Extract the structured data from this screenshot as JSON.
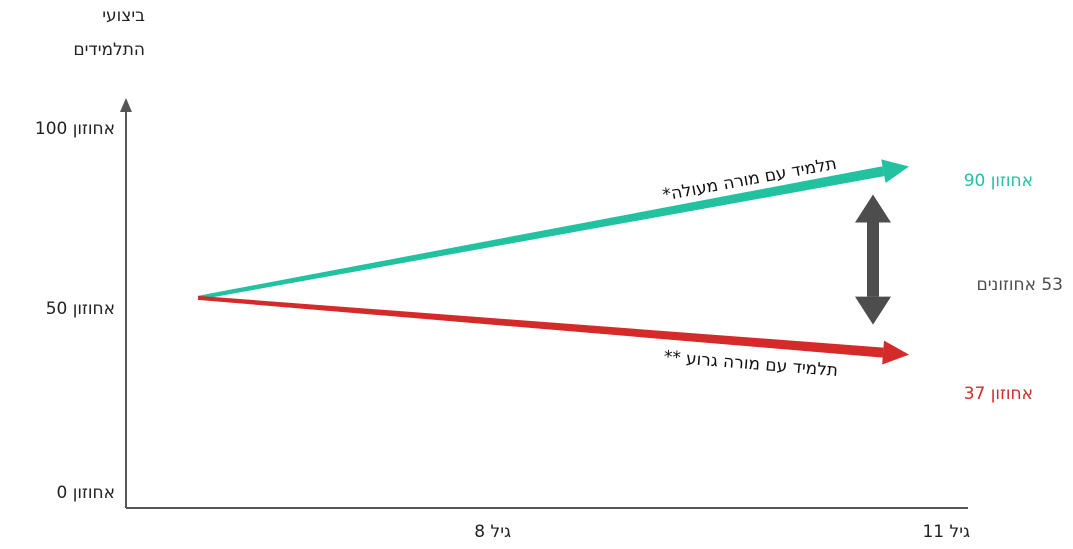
{
  "chart_data": {
    "type": "line",
    "ylabel": "ביצועי התלמידים",
    "ylabel_lines": [
      "ביצועי",
      "התלמידים"
    ],
    "yticks": [
      {
        "value": 100,
        "label": "אחוזון 100"
      },
      {
        "value": 50,
        "label": "אחוזון 50"
      },
      {
        "value": 0,
        "label": "אחוזון 0"
      }
    ],
    "xticks": [
      {
        "value": 8,
        "label": "גיל 8"
      },
      {
        "value": 11,
        "label": "גיל 11"
      }
    ],
    "ylim": [
      0,
      100
    ],
    "grid": false,
    "series": [
      {
        "name": "תלמיד עם מורה מעולה*",
        "color": "#22c1a0",
        "x": [
          8,
          11
        ],
        "y": [
          53,
          90
        ],
        "end_label": "אחוזון 90"
      },
      {
        "name": "תלמיד עם מורה גרוע **",
        "color": "#d42a2a",
        "x": [
          8,
          11
        ],
        "y": [
          53,
          37
        ],
        "end_label": "אחוזון 37"
      }
    ],
    "gap": {
      "label": "53 אחוזונים",
      "color": "#4d4d4d"
    }
  }
}
